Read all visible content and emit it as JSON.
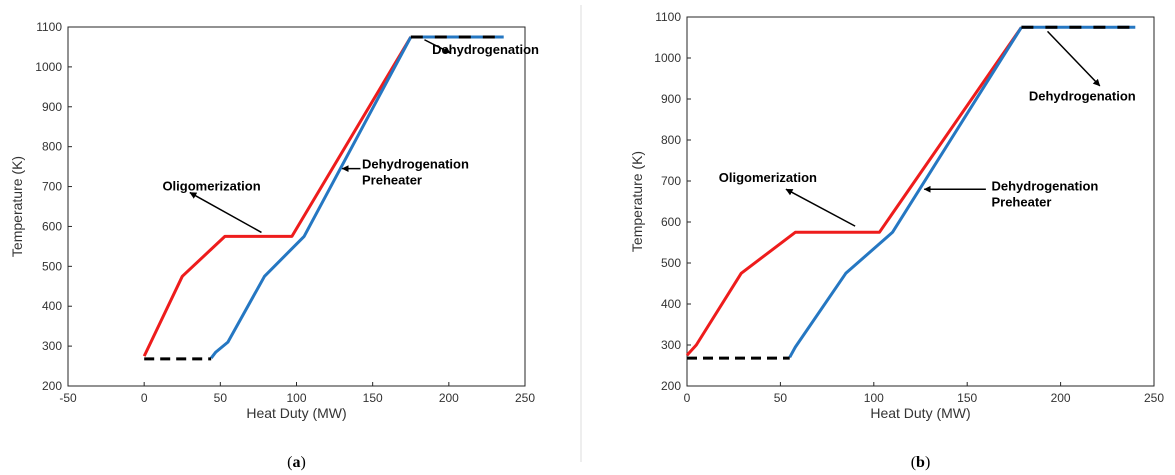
{
  "chart_data": [
    {
      "type": "line",
      "caption": "(a)",
      "xlabel": "Heat Duty (MW)",
      "ylabel": "Temperature (K)",
      "xlim": [
        -50,
        250
      ],
      "ylim": [
        200,
        1100
      ],
      "xticks": [
        -50,
        0,
        50,
        100,
        150,
        200,
        250
      ],
      "yticks": [
        200,
        300,
        400,
        500,
        600,
        700,
        800,
        900,
        1000,
        1100
      ],
      "grid": false,
      "series": [
        {
          "color": "#ee1c1c",
          "style": "solid",
          "x": [
            0,
            25,
            53,
            97,
            175
          ],
          "y": [
            275,
            475,
            575,
            575,
            1075
          ]
        },
        {
          "color": "#2577c2",
          "style": "solid",
          "x": [
            44,
            47,
            55,
            79,
            105,
            175
          ],
          "y": [
            270,
            285,
            310,
            475,
            575,
            1075
          ]
        },
        {
          "color": "#000000",
          "style": "dashed",
          "x": [
            0,
            44
          ],
          "y": [
            268,
            268
          ]
        },
        {
          "color": "#000000",
          "style": "dash-alternate",
          "altcolor": "#2577c2",
          "x": [
            175,
            236
          ],
          "y": [
            1075,
            1075
          ]
        }
      ],
      "annotations": [
        {
          "text": "Oligomerization",
          "lines": [
            "Oligomerization"
          ],
          "tx": 12,
          "ty": 690,
          "ax_from": [
            77,
            585
          ],
          "ax_to": [
            30,
            685
          ]
        },
        {
          "text": "Dehydrogenation Preheater",
          "lines": [
            "Dehydrogenation",
            "Preheater"
          ],
          "tx": 143,
          "ty": 745,
          "ax_from": [
            142,
            745
          ],
          "ax_to": [
            130,
            745
          ]
        },
        {
          "text": "Dehydrogenation",
          "lines": [
            "Dehydrogenation"
          ],
          "tx": 189,
          "ty": 1032,
          "ax_from": [
            184,
            1068
          ],
          "ax_to": [
            201,
            1035
          ]
        }
      ]
    },
    {
      "type": "line",
      "caption": "(b)",
      "xlabel": "Heat Duty (MW)",
      "ylabel": "Temperature (K)",
      "xlim": [
        0,
        250
      ],
      "ylim": [
        200,
        1100
      ],
      "xticks": [
        0,
        50,
        100,
        150,
        200,
        250
      ],
      "yticks": [
        200,
        300,
        400,
        500,
        600,
        700,
        800,
        900,
        1000,
        1100
      ],
      "grid": false,
      "series": [
        {
          "color": "#ee1c1c",
          "style": "solid",
          "x": [
            0,
            5,
            29,
            58,
            103,
            179
          ],
          "y": [
            275,
            300,
            475,
            575,
            575,
            1075
          ]
        },
        {
          "color": "#2577c2",
          "style": "solid",
          "x": [
            55,
            58,
            85,
            110,
            179
          ],
          "y": [
            270,
            295,
            475,
            575,
            1075
          ]
        },
        {
          "color": "#000000",
          "style": "dashed",
          "x": [
            0,
            55
          ],
          "y": [
            268,
            268
          ]
        },
        {
          "color": "#000000",
          "style": "dash-alternate",
          "altcolor": "#2577c2",
          "x": [
            179,
            240
          ],
          "y": [
            1075,
            1075
          ]
        }
      ],
      "annotations": [
        {
          "text": "Oligomerization",
          "lines": [
            "Oligomerization"
          ],
          "tx": 17,
          "ty": 698,
          "ax_from": [
            90,
            590
          ],
          "ax_to": [
            53,
            680
          ]
        },
        {
          "text": "Dehydrogenation Preheater",
          "lines": [
            "Dehydrogenation",
            "Preheater"
          ],
          "tx": 163,
          "ty": 677,
          "ax_from": [
            160,
            680
          ],
          "ax_to": [
            127,
            680
          ]
        },
        {
          "text": "Dehydrogenation",
          "lines": [
            "Dehydrogenation"
          ],
          "tx": 183,
          "ty": 896,
          "ax_from": [
            193,
            1065
          ],
          "ax_to": [
            221,
            932
          ]
        }
      ]
    }
  ]
}
